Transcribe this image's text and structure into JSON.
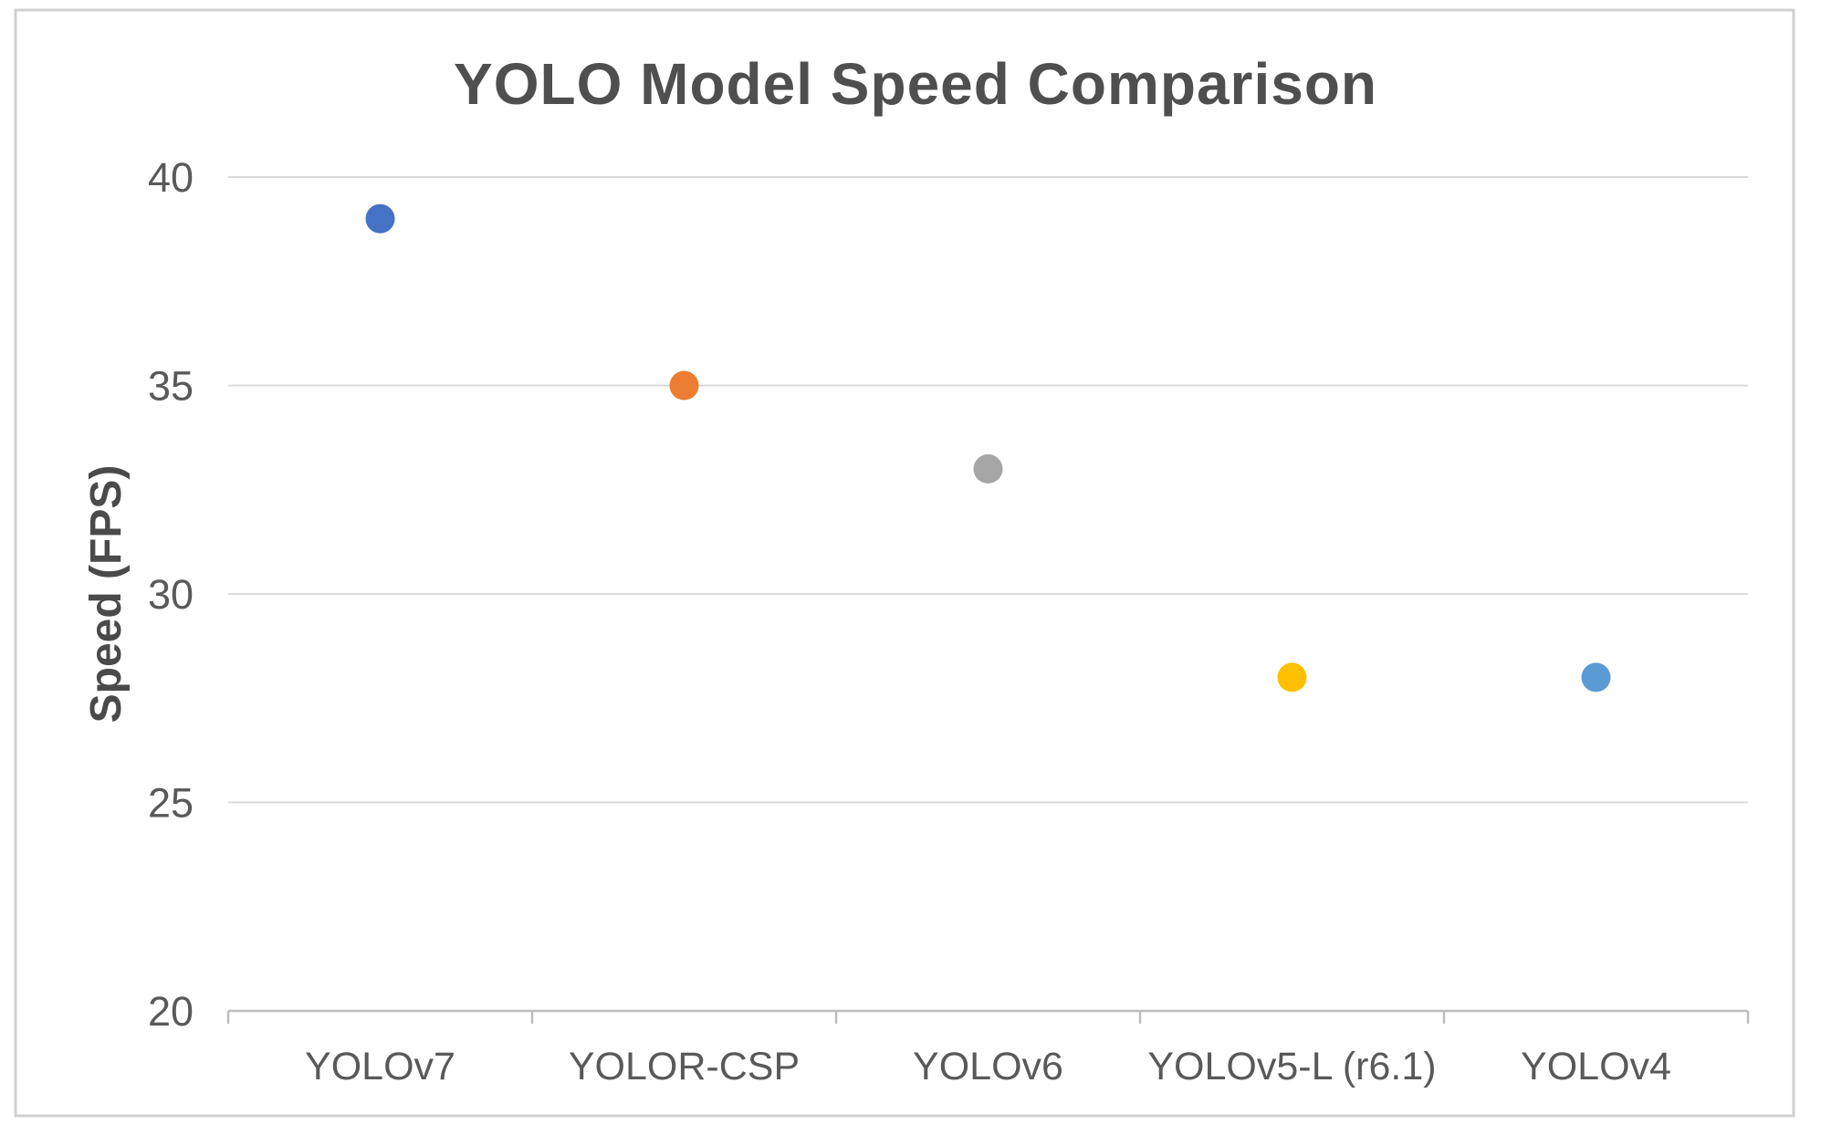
{
  "chart_data": {
    "type": "scatter",
    "title": "YOLO Model Speed Comparison",
    "xlabel": "",
    "ylabel": "Speed (FPS)",
    "categories": [
      "YOLOv7",
      "YOLOR-CSP",
      "YOLOv6",
      "YOLOv5-L (r6.1)",
      "YOLOv4"
    ],
    "values": [
      39,
      35,
      33,
      28,
      28
    ],
    "point_colors": [
      "#4472C4",
      "#ED7D31",
      "#A5A5A5",
      "#FFC000",
      "#5B9BD5"
    ],
    "ylim": [
      20,
      40
    ],
    "yticks": [
      20,
      25,
      30,
      35,
      40
    ],
    "grid": "horizontal",
    "legend_position": "none"
  },
  "colors": {
    "background": "#FFFFFF",
    "frame_border": "#D0D0D0",
    "gridline": "#D9D9D9",
    "axis_line": "#BEBEBE",
    "title_text": "#4F4F4F",
    "label_text": "#595959"
  }
}
